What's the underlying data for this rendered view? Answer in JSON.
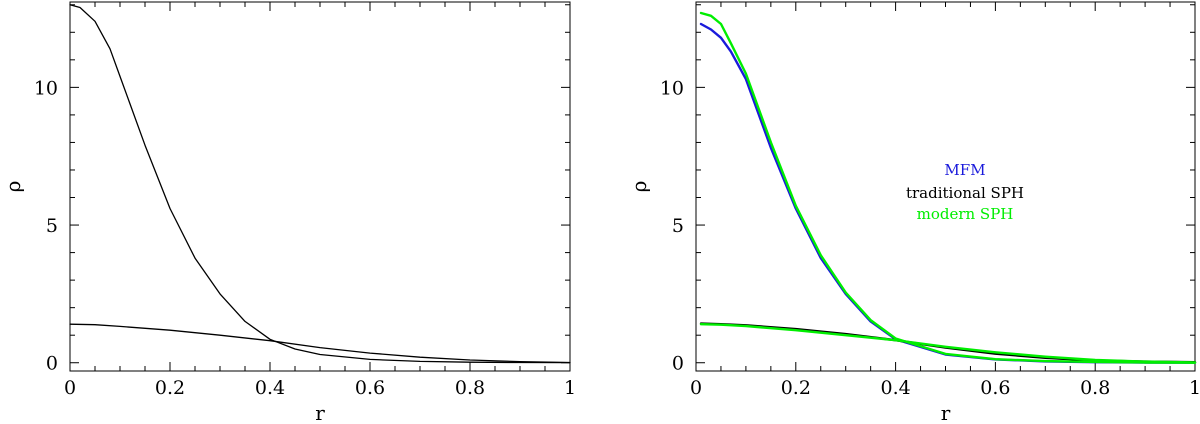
{
  "chart_data": [
    {
      "type": "line",
      "title": "",
      "xlabel": "r",
      "ylabel": "ρ",
      "xlim": [
        0,
        1
      ],
      "ylim": [
        -0.3,
        13.1
      ],
      "xticks": [
        0,
        0.2,
        0.4,
        0.6,
        0.8,
        1
      ],
      "xtick_labels": [
        "0",
        "0.2",
        "0.4",
        "0.6",
        "0.8",
        "1"
      ],
      "yticks": [
        0,
        5,
        10
      ],
      "ytick_labels": [
        "0",
        "5",
        "10"
      ],
      "grid": false,
      "series": [
        {
          "color": "#000000",
          "x": [
            0,
            0.02,
            0.05,
            0.08,
            0.1,
            0.12,
            0.15,
            0.2,
            0.25,
            0.3,
            0.35,
            0.4,
            0.45,
            0.5,
            0.6,
            0.7,
            0.8,
            0.9,
            1.0
          ],
          "values": [
            13.0,
            12.9,
            12.4,
            11.4,
            10.4,
            9.4,
            7.9,
            5.6,
            3.8,
            2.5,
            1.5,
            0.85,
            0.5,
            0.3,
            0.12,
            0.05,
            0.02,
            0.01,
            0.005
          ]
        },
        {
          "color": "#000000",
          "x": [
            0,
            0.05,
            0.1,
            0.2,
            0.3,
            0.4,
            0.5,
            0.6,
            0.7,
            0.8,
            0.9,
            1.0
          ],
          "values": [
            1.4,
            1.38,
            1.32,
            1.18,
            1.0,
            0.8,
            0.55,
            0.35,
            0.2,
            0.1,
            0.04,
            0.01
          ]
        }
      ]
    },
    {
      "type": "line",
      "title": "",
      "xlabel": "r",
      "ylabel": "ρ",
      "xlim": [
        0,
        1
      ],
      "ylim": [
        -0.3,
        13.1
      ],
      "xticks": [
        0,
        0.2,
        0.4,
        0.6,
        0.8,
        1
      ],
      "xtick_labels": [
        "0",
        "0.2",
        "0.4",
        "0.6",
        "0.8",
        "1"
      ],
      "yticks": [
        0,
        5,
        10
      ],
      "ytick_labels": [
        "0",
        "5",
        "10"
      ],
      "grid": false,
      "legend": {
        "placement": "center-right",
        "entries": [
          "MFM",
          "traditional SPH",
          "modern SPH"
        ]
      },
      "series": [
        {
          "name": "MFM",
          "color": "#1a1adb",
          "x": [
            0.01,
            0.03,
            0.05,
            0.07,
            0.1,
            0.12,
            0.15,
            0.2,
            0.25,
            0.3,
            0.35,
            0.4,
            0.5,
            0.6,
            0.7,
            0.8,
            0.9,
            1.0
          ],
          "values": [
            12.3,
            12.1,
            11.8,
            11.3,
            10.3,
            9.3,
            7.8,
            5.6,
            3.8,
            2.5,
            1.5,
            0.85,
            0.3,
            0.12,
            0.05,
            0.02,
            0.01,
            0.0
          ]
        },
        {
          "name": "traditional SPH",
          "color": "#000000",
          "x": [
            0.01,
            0.05,
            0.1,
            0.2,
            0.3,
            0.4,
            0.5,
            0.6,
            0.7,
            0.8,
            0.9,
            1.0
          ],
          "values": [
            1.42,
            1.4,
            1.36,
            1.22,
            1.04,
            0.82,
            0.55,
            0.33,
            0.18,
            0.08,
            0.04,
            0.02
          ]
        },
        {
          "name": "modern SPH",
          "color": "#00ee00",
          "x": [
            0.01,
            0.03,
            0.05,
            0.07,
            0.1,
            0.12,
            0.15,
            0.2,
            0.25,
            0.3,
            0.35,
            0.4,
            0.5,
            0.6,
            0.7,
            0.8,
            0.9,
            1.0
          ],
          "values": [
            12.7,
            12.6,
            12.3,
            11.6,
            10.5,
            9.5,
            8.0,
            5.7,
            3.9,
            2.55,
            1.55,
            0.88,
            0.32,
            0.13,
            0.06,
            0.03,
            0.01,
            0.0
          ]
        },
        {
          "name": "modern SPH",
          "color": "#00ee00",
          "x": [
            0.01,
            0.05,
            0.1,
            0.2,
            0.3,
            0.4,
            0.5,
            0.6,
            0.7,
            0.8,
            0.9,
            1.0
          ],
          "values": [
            1.4,
            1.38,
            1.33,
            1.18,
            1.0,
            0.82,
            0.58,
            0.38,
            0.22,
            0.1,
            0.04,
            0.01
          ]
        }
      ]
    }
  ]
}
